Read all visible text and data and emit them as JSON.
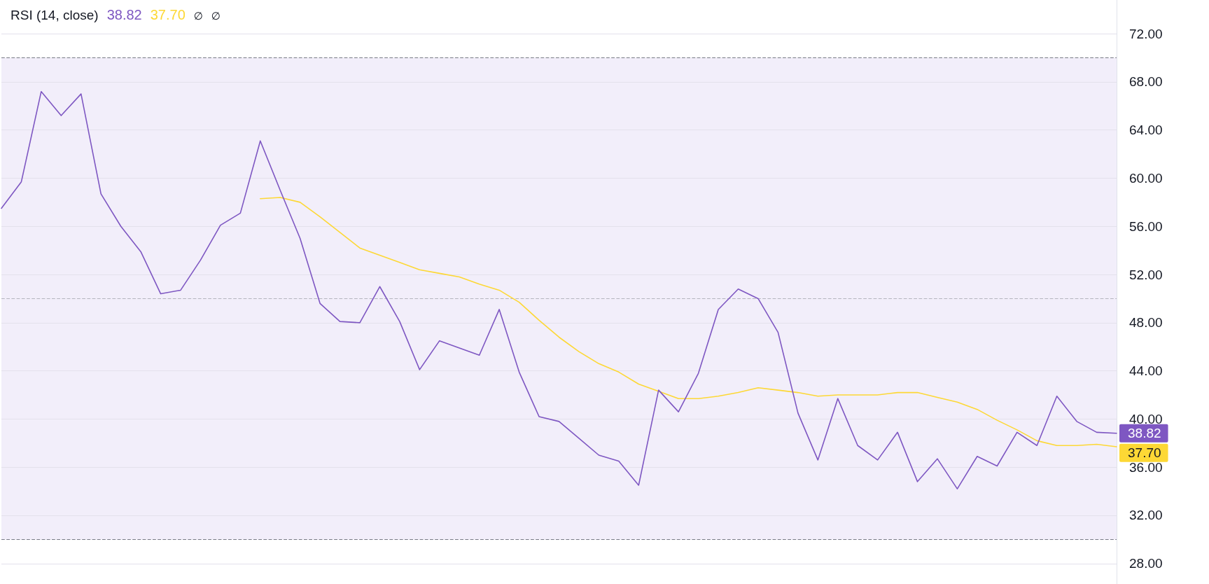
{
  "chart_data": {
    "type": "line",
    "title": "RSI (14, close)",
    "annotations": [
      "∅",
      "∅"
    ],
    "categories": [
      null,
      null,
      null,
      null,
      null,
      null,
      null,
      null,
      null,
      null,
      null,
      null,
      null,
      null,
      null,
      null,
      null,
      null,
      null,
      null,
      null,
      null,
      null,
      null,
      null,
      null,
      null,
      null,
      null,
      null,
      null,
      null,
      null,
      null,
      null,
      null,
      null,
      null,
      null,
      null,
      null,
      null,
      null,
      null,
      null,
      null,
      null,
      null,
      null,
      null,
      null,
      null,
      null,
      null,
      null,
      null,
      null
    ],
    "series": [
      {
        "color": "#7e57c2",
        "values": [
          57.5,
          59.7,
          67.2,
          65.2,
          67.0,
          58.7,
          56.0,
          53.9,
          50.4,
          50.7,
          53.2,
          56.1,
          57.1,
          63.1,
          59.0,
          55.0,
          49.6,
          48.1,
          48.0,
          51.0,
          48.1,
          44.1,
          46.5,
          45.9,
          45.3,
          49.1,
          43.9,
          40.2,
          39.8,
          38.4,
          37.0,
          36.5,
          34.5,
          42.4,
          40.6,
          43.8,
          49.1,
          50.8,
          50.0,
          47.2,
          40.5,
          36.6,
          41.7,
          37.8,
          36.6,
          38.9,
          34.8,
          36.7,
          34.2,
          36.9,
          36.1,
          38.9,
          37.8,
          41.9,
          39.8,
          38.9,
          38.82
        ],
        "value_labels": [
          null,
          null,
          null,
          null,
          null,
          null,
          null,
          null,
          null,
          null,
          null,
          null,
          null,
          null,
          null,
          null,
          null,
          null,
          null,
          null,
          null,
          null,
          null,
          null,
          null,
          null,
          null,
          null,
          null,
          null,
          null,
          null,
          null,
          null,
          null,
          null,
          null,
          null,
          null,
          null,
          null,
          null,
          null,
          null,
          null,
          null,
          null,
          null,
          null,
          null,
          null,
          null,
          null,
          null,
          null,
          null,
          "38.82"
        ]
      },
      {
        "color": "#fdd835",
        "values": [
          null,
          null,
          null,
          null,
          null,
          null,
          null,
          null,
          null,
          null,
          null,
          null,
          null,
          58.3,
          58.4,
          58.0,
          56.8,
          55.5,
          54.2,
          53.6,
          53.0,
          52.4,
          52.1,
          51.8,
          51.2,
          50.7,
          49.7,
          48.2,
          46.8,
          45.6,
          44.6,
          43.9,
          42.9,
          42.3,
          41.7,
          41.7,
          41.9,
          42.2,
          42.6,
          42.4,
          42.2,
          41.9,
          42.0,
          42.0,
          42.0,
          42.2,
          42.2,
          41.8,
          41.4,
          40.8,
          39.9,
          39.1,
          38.2,
          37.8,
          37.8,
          37.9,
          37.7
        ],
        "value_labels": [
          null,
          null,
          null,
          null,
          null,
          null,
          null,
          null,
          null,
          null,
          null,
          null,
          null,
          null,
          null,
          null,
          null,
          null,
          null,
          null,
          null,
          null,
          null,
          null,
          null,
          null,
          null,
          null,
          null,
          null,
          null,
          null,
          null,
          null,
          null,
          null,
          null,
          null,
          null,
          null,
          null,
          null,
          null,
          null,
          null,
          null,
          null,
          null,
          null,
          null,
          null,
          null,
          null,
          null,
          null,
          null,
          "37.70"
        ]
      }
    ],
    "ylim": [
      26.3,
      74.8
    ],
    "yticks": [
      {
        "value": 28,
        "label": "28.00"
      },
      {
        "value": 32,
        "label": "32.00"
      },
      {
        "value": 36,
        "label": "36.00"
      },
      {
        "value": 40,
        "label": "40.00"
      },
      {
        "value": 44,
        "label": "44.00"
      },
      {
        "value": 48,
        "label": "48.00"
      },
      {
        "value": 52,
        "label": "52.00"
      },
      {
        "value": 56,
        "label": "56.00"
      },
      {
        "value": 60,
        "label": "60.00"
      },
      {
        "value": 64,
        "label": "64.00"
      },
      {
        "value": 68,
        "label": "68.00"
      },
      {
        "value": 72,
        "label": "72.00"
      }
    ],
    "grid": "y",
    "tick_labels": "y",
    "marker": "none",
    "line_style": "solid",
    "ref_lines": [
      {
        "axis": "y",
        "value": 70,
        "color": "#787b86",
        "line_style": "dashed"
      },
      {
        "axis": "y",
        "value": 50,
        "color": "#b4b5be",
        "line_style": "dashed"
      },
      {
        "axis": "y",
        "value": 30,
        "color": "#787b86",
        "line_style": "dashed"
      }
    ],
    "bands": [
      {
        "axis": "y",
        "from": 30,
        "to": 70,
        "color": "#f2eefa"
      }
    ]
  }
}
